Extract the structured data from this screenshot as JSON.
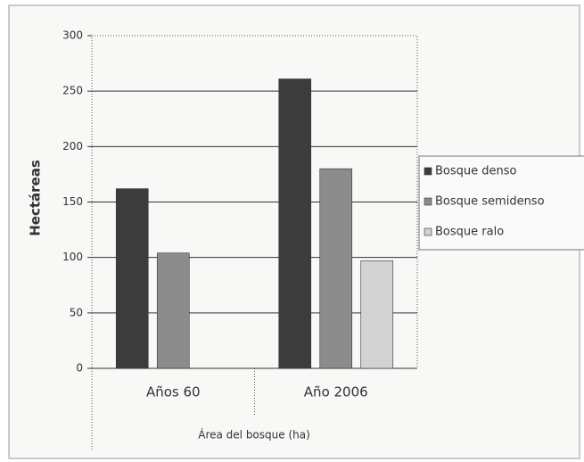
{
  "chart_data": {
    "type": "bar",
    "categories": [
      "Años 60",
      "Año 2006"
    ],
    "series": [
      {
        "name": "Bosque denso",
        "color": "#3c3c3c",
        "values": [
          162,
          261
        ]
      },
      {
        "name": "Bosque semidenso",
        "color": "#8c8c8c",
        "values": [
          104,
          180
        ]
      },
      {
        "name": "Bosque ralo",
        "color": "#d2d2d2",
        "values": [
          null,
          97
        ]
      }
    ],
    "y_label": "Hectáreas",
    "x_label": "Área del bosque (ha)",
    "ylim": [
      0,
      300
    ],
    "yticks": [
      0,
      50,
      100,
      150,
      200,
      250,
      300
    ],
    "grid": true,
    "legend": "right"
  }
}
